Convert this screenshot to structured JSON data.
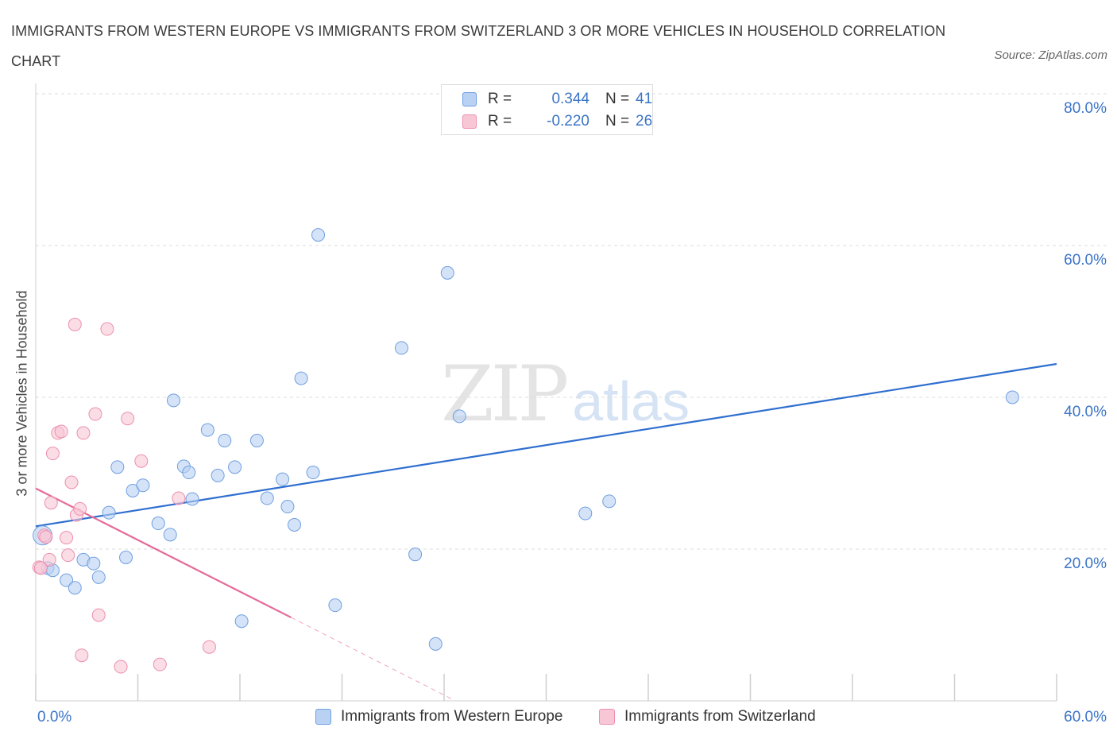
{
  "title": "IMMIGRANTS FROM WESTERN EUROPE VS IMMIGRANTS FROM SWITZERLAND 3 OR MORE VEHICLES IN HOUSEHOLD CORRELATION CHART",
  "source": "Source: ZipAtlas.com",
  "watermark": {
    "zip": "ZIP",
    "atlas": "atlas"
  },
  "legend": [
    {
      "r_label": "R =",
      "r_value": "0.344",
      "n_label": "N =",
      "n_value": "41"
    },
    {
      "r_label": "R =",
      "r_value": "-0.220",
      "n_label": "N =",
      "n_value": "26"
    }
  ],
  "colors": {
    "blue_fill": "#b9d1f3",
    "blue_stroke": "#6f9fe0",
    "blue_line": "#2f6fcf",
    "pink_fill": "#f8c7d6",
    "pink_stroke": "#ec8fae",
    "pink_line": "#e56b98",
    "tick_text": "#3b74c8",
    "grid": "#dddddd"
  },
  "chart_data": {
    "type": "scatter",
    "title": "IMMIGRANTS FROM WESTERN EUROPE VS IMMIGRANTS FROM SWITZERLAND 3 OR MORE VEHICLES IN HOUSEHOLD CORRELATION CHART",
    "xlabel": "",
    "ylabel": "3 or more Vehicles in Household",
    "xlim": [
      0,
      60
    ],
    "ylim": [
      0,
      80
    ],
    "x_tick_labels": [
      "0.0%",
      "60.0%"
    ],
    "y_ticks": [
      20,
      40,
      60,
      80
    ],
    "y_tick_labels": [
      "20.0%",
      "40.0%",
      "60.0%",
      "80.0%"
    ],
    "grid": true,
    "legend_position": "top-center",
    "series": [
      {
        "name": "Immigrants from Western Europe",
        "color": "blue",
        "r": 0.344,
        "n": 41,
        "trend": {
          "x": [
            0,
            60
          ],
          "y": [
            23.0,
            44.4
          ]
        },
        "points": [
          [
            0.4,
            21.8
          ],
          [
            0.7,
            17.5
          ],
          [
            1.0,
            17.2
          ],
          [
            1.8,
            15.9
          ],
          [
            2.3,
            14.9
          ],
          [
            2.8,
            18.6
          ],
          [
            3.4,
            18.1
          ],
          [
            3.7,
            16.3
          ],
          [
            4.3,
            24.8
          ],
          [
            4.8,
            30.8
          ],
          [
            5.3,
            18.9
          ],
          [
            5.7,
            27.7
          ],
          [
            6.3,
            28.4
          ],
          [
            7.2,
            23.4
          ],
          [
            7.9,
            21.9
          ],
          [
            8.1,
            39.6
          ],
          [
            8.7,
            30.9
          ],
          [
            9.0,
            30.1
          ],
          [
            9.2,
            26.6
          ],
          [
            10.1,
            35.7
          ],
          [
            10.7,
            29.7
          ],
          [
            11.1,
            34.3
          ],
          [
            11.7,
            30.8
          ],
          [
            12.1,
            10.5
          ],
          [
            13.0,
            34.3
          ],
          [
            13.6,
            26.7
          ],
          [
            14.5,
            29.2
          ],
          [
            14.8,
            25.6
          ],
          [
            15.2,
            23.2
          ],
          [
            15.6,
            42.5
          ],
          [
            16.3,
            30.1
          ],
          [
            16.6,
            61.4
          ],
          [
            17.6,
            12.6
          ],
          [
            21.5,
            46.5
          ],
          [
            22.3,
            19.3
          ],
          [
            23.5,
            7.5
          ],
          [
            24.2,
            56.4
          ],
          [
            24.9,
            37.5
          ],
          [
            32.3,
            24.7
          ],
          [
            33.7,
            26.3
          ],
          [
            57.4,
            40.0
          ]
        ]
      },
      {
        "name": "Immigrants from Switzerland",
        "color": "pink",
        "r": -0.22,
        "n": 26,
        "trend": {
          "x": [
            0,
            15
          ],
          "y": [
            28.0,
            11.0
          ]
        },
        "trend_dashed": {
          "x": [
            15,
            24.5
          ],
          "y": [
            11.0,
            0.2
          ]
        },
        "points": [
          [
            0.2,
            17.6
          ],
          [
            0.5,
            21.8
          ],
          [
            0.8,
            18.6
          ],
          [
            0.9,
            26.1
          ],
          [
            1.0,
            32.6
          ],
          [
            1.3,
            35.3
          ],
          [
            1.5,
            35.5
          ],
          [
            1.8,
            21.5
          ],
          [
            1.9,
            19.2
          ],
          [
            2.1,
            28.8
          ],
          [
            2.3,
            49.6
          ],
          [
            2.4,
            24.5
          ],
          [
            2.6,
            25.3
          ],
          [
            2.7,
            6.0
          ],
          [
            2.8,
            35.3
          ],
          [
            3.5,
            37.8
          ],
          [
            3.7,
            11.3
          ],
          [
            4.2,
            49.0
          ],
          [
            5.0,
            4.5
          ],
          [
            5.4,
            37.2
          ],
          [
            6.2,
            31.6
          ],
          [
            7.3,
            4.8
          ],
          [
            8.4,
            26.7
          ],
          [
            10.2,
            7.1
          ],
          [
            0.3,
            17.5
          ],
          [
            0.6,
            21.6
          ]
        ]
      }
    ]
  },
  "bottom_legend": [
    "Immigrants from Western Europe",
    "Immigrants from Switzerland"
  ]
}
